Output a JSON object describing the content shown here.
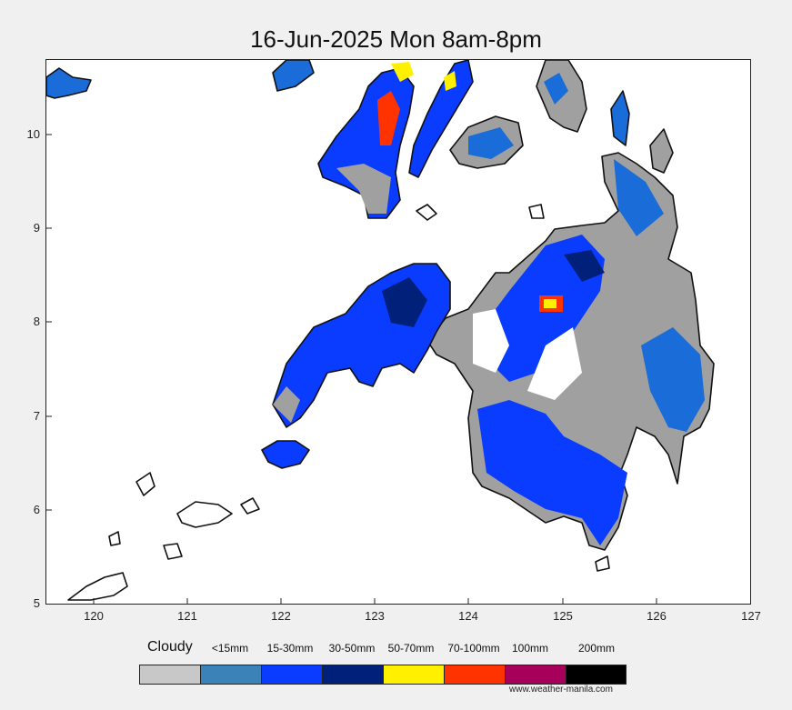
{
  "title": "16-Jun-2025 Mon 8am-8pm",
  "map": {
    "x_ticks": [
      "120",
      "121",
      "122",
      "123",
      "124",
      "125",
      "126",
      "127"
    ],
    "y_ticks": [
      "10",
      "9",
      "8",
      "7",
      "6",
      "5"
    ],
    "x_range": [
      119.5,
      127
    ],
    "y_range": [
      5,
      10.8
    ]
  },
  "legend": {
    "title": "Cloudy",
    "items": [
      {
        "label": "",
        "color": "#c8c8c8"
      },
      {
        "label": "<15mm",
        "color": "#3a82b8"
      },
      {
        "label": "15-30mm",
        "color": "#0a3cff"
      },
      {
        "label": "30-50mm",
        "color": "#00207a"
      },
      {
        "label": "50-70mm",
        "color": "#fff000"
      },
      {
        "label": "70-100mm",
        "color": "#ff3300"
      },
      {
        "label": "100mm",
        "color": "#a6005a"
      },
      {
        "label": "200mm",
        "color": "#000000"
      }
    ]
  },
  "credit": "www.weather-manila.com"
}
